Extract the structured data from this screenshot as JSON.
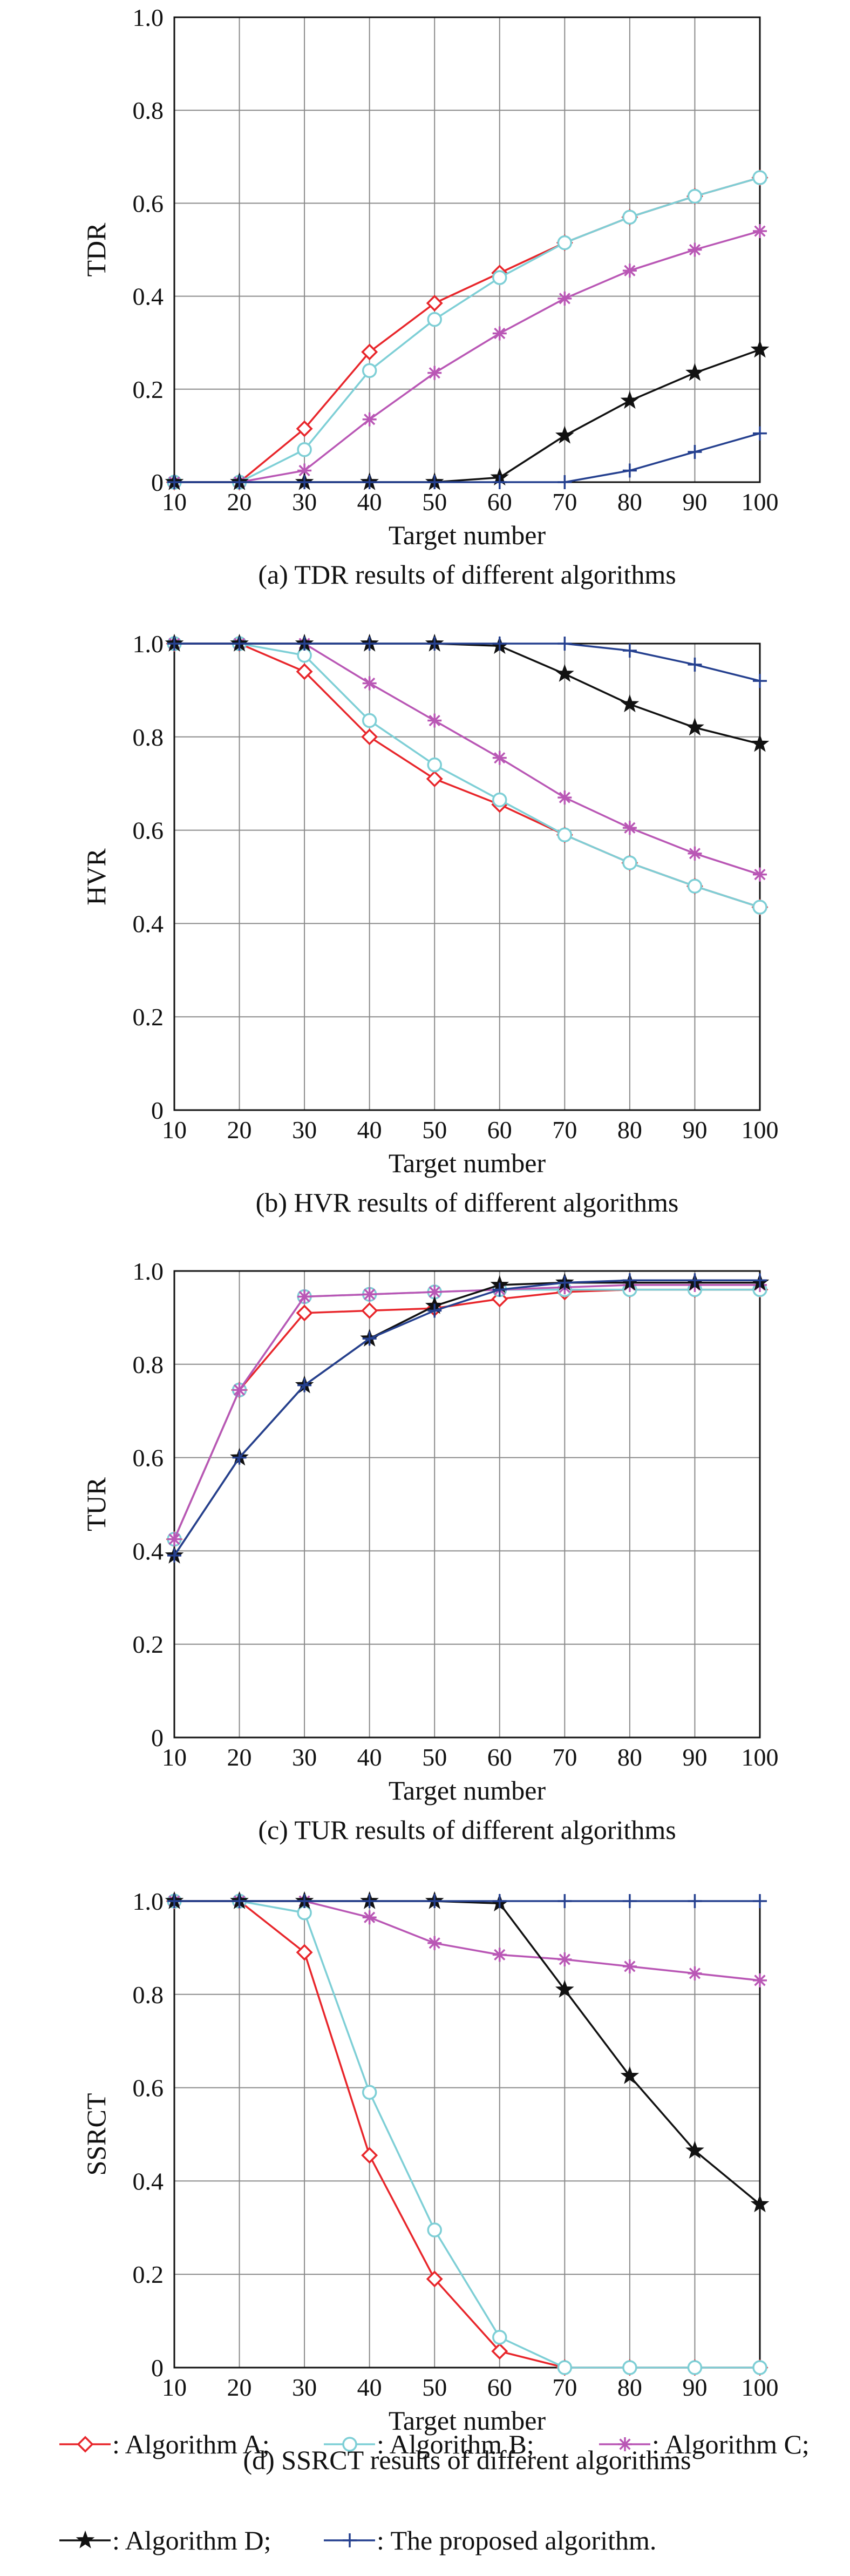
{
  "chart_data": [
    {
      "type": "line",
      "caption": "(a) TDR results of different algorithms",
      "xlabel": "Target number",
      "ylabel": "TDR",
      "x": [
        10,
        20,
        30,
        40,
        50,
        60,
        70,
        80,
        90,
        100
      ],
      "xticks": [
        "10",
        "20",
        "30",
        "40",
        "50",
        "60",
        "70",
        "80",
        "90",
        "100"
      ],
      "yticks": [
        "0",
        "0.2",
        "0.4",
        "0.6",
        "0.8",
        "1.0"
      ],
      "ylim": [
        0,
        1
      ],
      "xlim": [
        10,
        100
      ],
      "grid": true,
      "series": [
        {
          "name": "Algorithm A",
          "values": [
            0,
            0,
            0.115,
            0.28,
            0.385,
            0.45,
            0.515,
            0.57,
            0.615,
            0.655
          ]
        },
        {
          "name": "Algorithm B",
          "values": [
            0,
            0,
            0.07,
            0.24,
            0.35,
            0.44,
            0.515,
            0.57,
            0.615,
            0.655
          ]
        },
        {
          "name": "Algorithm C",
          "values": [
            0,
            0,
            0.025,
            0.135,
            0.235,
            0.32,
            0.395,
            0.455,
            0.5,
            0.54
          ]
        },
        {
          "name": "Algorithm D",
          "values": [
            0,
            0,
            0,
            0,
            0,
            0.01,
            0.1,
            0.175,
            0.235,
            0.285
          ]
        },
        {
          "name": "The proposed algorithm.",
          "values": [
            0,
            0,
            0,
            0,
            0,
            0,
            0,
            0.025,
            0.065,
            0.105
          ]
        }
      ]
    },
    {
      "type": "line",
      "caption": "(b) HVR results of different algorithms",
      "xlabel": "Target number",
      "ylabel": "HVR",
      "x": [
        10,
        20,
        30,
        40,
        50,
        60,
        70,
        80,
        90,
        100
      ],
      "xticks": [
        "10",
        "20",
        "30",
        "40",
        "50",
        "60",
        "70",
        "80",
        "90",
        "100"
      ],
      "yticks": [
        "0",
        "0.2",
        "0.4",
        "0.6",
        "0.8",
        "1.0"
      ],
      "ylim": [
        0,
        1
      ],
      "xlim": [
        10,
        100
      ],
      "grid": true,
      "series": [
        {
          "name": "Algorithm A",
          "values": [
            1.0,
            1.0,
            0.94,
            0.8,
            0.71,
            0.655,
            0.59,
            0.53,
            0.48,
            0.435
          ]
        },
        {
          "name": "Algorithm B",
          "values": [
            1.0,
            1.0,
            0.975,
            0.835,
            0.74,
            0.665,
            0.59,
            0.53,
            0.48,
            0.435
          ]
        },
        {
          "name": "Algorithm C",
          "values": [
            1.0,
            1.0,
            1.0,
            0.915,
            0.835,
            0.755,
            0.67,
            0.605,
            0.55,
            0.505
          ]
        },
        {
          "name": "Algorithm D",
          "values": [
            1.0,
            1.0,
            1.0,
            1.0,
            1.0,
            0.995,
            0.935,
            0.87,
            0.82,
            0.785
          ]
        },
        {
          "name": "The proposed algorithm.",
          "values": [
            1.0,
            1.0,
            1.0,
            1.0,
            1.0,
            1.0,
            1.0,
            0.985,
            0.955,
            0.92
          ]
        }
      ]
    },
    {
      "type": "line",
      "caption": "(c) TUR results of different algorithms",
      "xlabel": "Target number",
      "ylabel": "TUR",
      "x": [
        10,
        20,
        30,
        40,
        50,
        60,
        70,
        80,
        90,
        100
      ],
      "xticks": [
        "10",
        "20",
        "30",
        "40",
        "50",
        "60",
        "70",
        "80",
        "90",
        "100"
      ],
      "yticks": [
        "0",
        "0.2",
        "0.4",
        "0.6",
        "0.8",
        "1.0"
      ],
      "ylim": [
        0,
        1
      ],
      "xlim": [
        10,
        100
      ],
      "grid": true,
      "series": [
        {
          "name": "Algorithm A",
          "values": [
            0.425,
            0.745,
            0.91,
            0.915,
            0.92,
            0.94,
            0.955,
            0.96,
            0.96,
            0.96
          ]
        },
        {
          "name": "Algorithm B",
          "values": [
            0.425,
            0.745,
            0.945,
            0.95,
            0.955,
            0.96,
            0.96,
            0.96,
            0.96,
            0.96
          ]
        },
        {
          "name": "Algorithm C",
          "values": [
            0.425,
            0.745,
            0.945,
            0.95,
            0.955,
            0.96,
            0.965,
            0.97,
            0.97,
            0.97
          ]
        },
        {
          "name": "Algorithm D",
          "values": [
            0.39,
            0.6,
            0.755,
            0.855,
            0.925,
            0.97,
            0.975,
            0.975,
            0.975,
            0.975
          ]
        },
        {
          "name": "The proposed algorithm.",
          "values": [
            0.39,
            0.6,
            0.755,
            0.855,
            0.915,
            0.96,
            0.975,
            0.98,
            0.98,
            0.98
          ]
        }
      ]
    },
    {
      "type": "line",
      "caption": "(d) SSRCT results of different algorithms",
      "xlabel": "Target number",
      "ylabel": "SSRCT",
      "x": [
        10,
        20,
        30,
        40,
        50,
        60,
        70,
        80,
        90,
        100
      ],
      "xticks": [
        "10",
        "20",
        "30",
        "40",
        "50",
        "60",
        "70",
        "80",
        "90",
        "100"
      ],
      "yticks": [
        "0",
        "0.2",
        "0.4",
        "0.6",
        "0.8",
        "1.0"
      ],
      "ylim": [
        0,
        1
      ],
      "xlim": [
        10,
        100
      ],
      "grid": true,
      "series": [
        {
          "name": "Algorithm A",
          "values": [
            1.0,
            1.0,
            0.89,
            0.455,
            0.19,
            0.035,
            0,
            0,
            0,
            0
          ]
        },
        {
          "name": "Algorithm B",
          "values": [
            1.0,
            1.0,
            0.975,
            0.59,
            0.295,
            0.065,
            0,
            0,
            0,
            0
          ]
        },
        {
          "name": "Algorithm C",
          "values": [
            1.0,
            1.0,
            1.0,
            0.965,
            0.91,
            0.885,
            0.875,
            0.86,
            0.845,
            0.83
          ]
        },
        {
          "name": "Algorithm D",
          "values": [
            1.0,
            1.0,
            1.0,
            1.0,
            1.0,
            0.995,
            0.81,
            0.625,
            0.465,
            0.35
          ]
        },
        {
          "name": "The proposed algorithm.",
          "values": [
            1.0,
            1.0,
            1.0,
            1.0,
            1.0,
            1.0,
            1.0,
            1.0,
            1.0,
            1.0
          ]
        }
      ]
    }
  ],
  "legend": {
    "items": [
      {
        "label": ": Algorithm A;",
        "color": "#e8262b",
        "marker": "diamond"
      },
      {
        "label": ": Algorithm B;",
        "color": "#7ecfd6",
        "marker": "circle"
      },
      {
        "label": ": Algorithm C;",
        "color": "#b957b5",
        "marker": "asterisk"
      },
      {
        "label": ": Algorithm D;",
        "color": "#111111",
        "marker": "star"
      },
      {
        "label": ": The proposed algorithm.",
        "color": "#25408f",
        "marker": "plus"
      }
    ]
  },
  "series_colors": [
    "#e8262b",
    "#7ecfd6",
    "#b957b5",
    "#111111",
    "#25408f"
  ],
  "series_markers": [
    "diamond",
    "circle",
    "asterisk",
    "star",
    "plus"
  ]
}
